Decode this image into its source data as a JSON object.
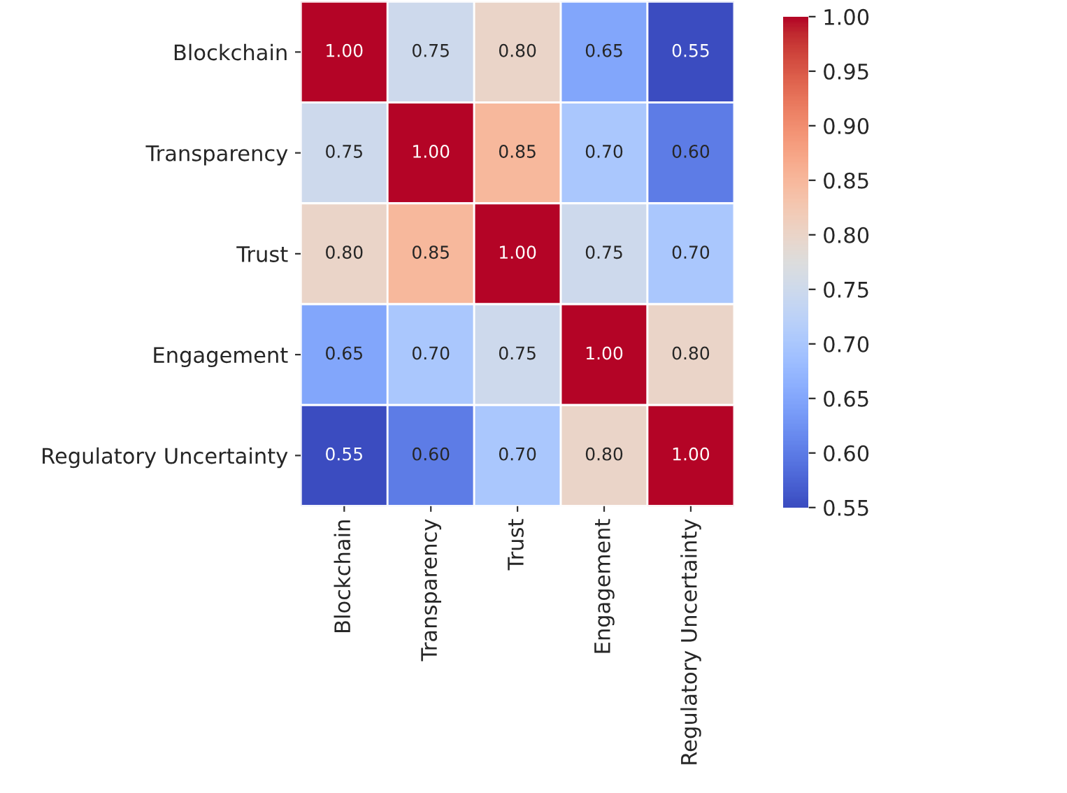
{
  "chart_data": {
    "type": "heatmap",
    "categories": [
      "Blockchain",
      "Transparency",
      "Trust",
      "Engagement",
      "Regulatory Uncertainty"
    ],
    "y_categories": [
      "Blockchain",
      "Transparency",
      "Trust",
      "Engagement",
      "Regulatory Uncertainty"
    ],
    "cells": [
      [
        1.0,
        0.75,
        0.8,
        0.65,
        0.55
      ],
      [
        0.75,
        1.0,
        0.85,
        0.7,
        0.6
      ],
      [
        0.8,
        0.85,
        1.0,
        0.75,
        0.7
      ],
      [
        0.65,
        0.7,
        0.75,
        1.0,
        0.8
      ],
      [
        0.55,
        0.6,
        0.7,
        0.8,
        1.0
      ]
    ],
    "cell_labels": [
      [
        "1.00",
        "0.75",
        "0.80",
        "0.65",
        "0.55"
      ],
      [
        "0.75",
        "1.00",
        "0.85",
        "0.70",
        "0.60"
      ],
      [
        "0.80",
        "0.85",
        "1.00",
        "0.75",
        "0.70"
      ],
      [
        "0.65",
        "0.70",
        "0.75",
        "1.00",
        "0.80"
      ],
      [
        "0.55",
        "0.60",
        "0.70",
        "0.80",
        "1.00"
      ]
    ],
    "clim": [
      0.55,
      1.0
    ],
    "cticks": [
      {
        "value": 0.55,
        "label": "0.55"
      },
      {
        "value": 0.6,
        "label": "0.60"
      },
      {
        "value": 0.65,
        "label": "0.65"
      },
      {
        "value": 0.7,
        "label": "0.70"
      },
      {
        "value": 0.75,
        "label": "0.75"
      },
      {
        "value": 0.8,
        "label": "0.80"
      },
      {
        "value": 0.85,
        "label": "0.85"
      },
      {
        "value": 0.9,
        "label": "0.90"
      },
      {
        "value": 0.95,
        "label": "0.95"
      },
      {
        "value": 1.0,
        "label": "1.00"
      }
    ]
  }
}
